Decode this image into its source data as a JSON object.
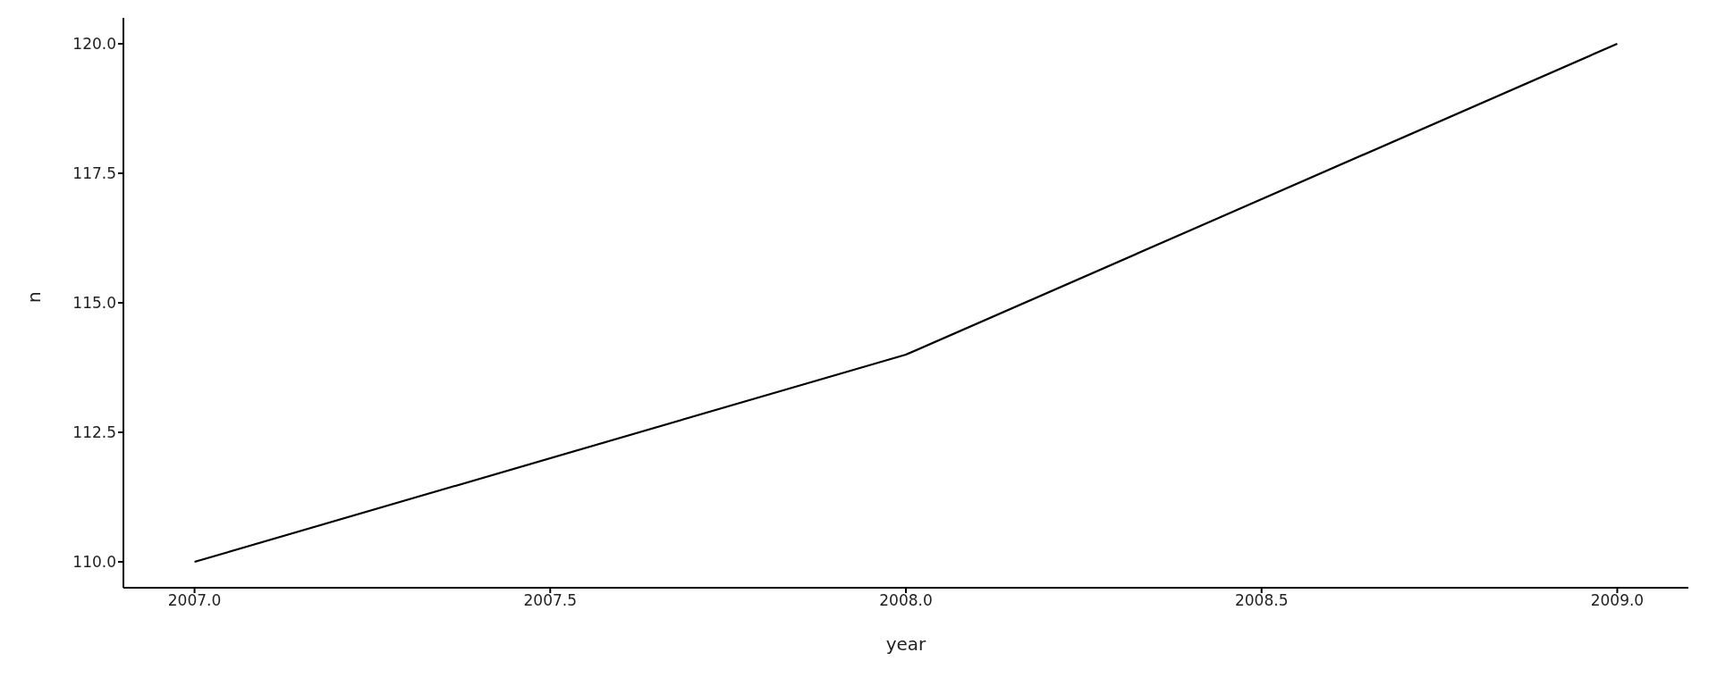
{
  "chart_data": {
    "type": "line",
    "xlabel": "year",
    "ylabel": "n",
    "x": [
      2007,
      2008,
      2009
    ],
    "series": [
      {
        "color": "#000000",
        "values": [
          110,
          114,
          120
        ]
      }
    ],
    "xlim": [
      2006.9,
      2009.1
    ],
    "xticks": [
      {
        "value": 2007,
        "label": "2007.0"
      },
      {
        "value": 2007.5,
        "label": "2007.5"
      },
      {
        "value": 2008,
        "label": "2008.0"
      },
      {
        "value": 2008.5,
        "label": "2008.5"
      },
      {
        "value": 2009,
        "label": "2009.0"
      }
    ],
    "ylim": [
      109.5,
      120.5
    ],
    "yticks": [
      {
        "value": 110,
        "label": "110.0"
      },
      {
        "value": 112.5,
        "label": "112.5"
      },
      {
        "value": 115,
        "label": "115.0"
      },
      {
        "value": 117.5,
        "label": "117.5"
      },
      {
        "value": 120,
        "label": "120.0"
      }
    ],
    "marker": "none",
    "line_style": "solid"
  }
}
